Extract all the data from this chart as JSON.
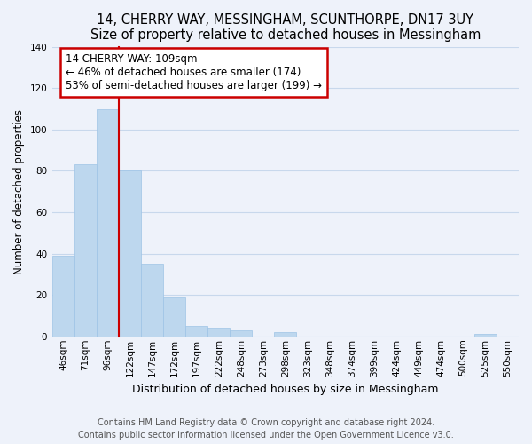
{
  "title": "14, CHERRY WAY, MESSINGHAM, SCUNTHORPE, DN17 3UY",
  "subtitle": "Size of property relative to detached houses in Messingham",
  "xlabel": "Distribution of detached houses by size in Messingham",
  "ylabel": "Number of detached properties",
  "bar_labels": [
    "46sqm",
    "71sqm",
    "96sqm",
    "122sqm",
    "147sqm",
    "172sqm",
    "197sqm",
    "222sqm",
    "248sqm",
    "273sqm",
    "298sqm",
    "323sqm",
    "348sqm",
    "374sqm",
    "399sqm",
    "424sqm",
    "449sqm",
    "474sqm",
    "500sqm",
    "525sqm",
    "550sqm"
  ],
  "bar_values": [
    39,
    83,
    110,
    80,
    35,
    19,
    5,
    4,
    3,
    0,
    2,
    0,
    0,
    0,
    0,
    0,
    0,
    0,
    0,
    1,
    0
  ],
  "bar_color": "#bdd7ee",
  "bar_edge_color": "#9dc3e6",
  "grid_color": "#c8d8ec",
  "background_color": "#eef2fa",
  "annotation_line_color": "#cc0000",
  "annotation_box_text": "14 CHERRY WAY: 109sqm\n← 46% of detached houses are smaller (174)\n53% of semi-detached houses are larger (199) →",
  "annotation_box_color": "#ffffff",
  "annotation_box_edge_color": "#cc0000",
  "ylim": [
    0,
    140
  ],
  "yticks": [
    0,
    20,
    40,
    60,
    80,
    100,
    120,
    140
  ],
  "footer_line1": "Contains HM Land Registry data © Crown copyright and database right 2024.",
  "footer_line2": "Contains public sector information licensed under the Open Government Licence v3.0.",
  "title_fontsize": 10.5,
  "xlabel_fontsize": 9,
  "ylabel_fontsize": 8.5,
  "tick_fontsize": 7.5,
  "annotation_fontsize": 8.5,
  "footer_fontsize": 7
}
